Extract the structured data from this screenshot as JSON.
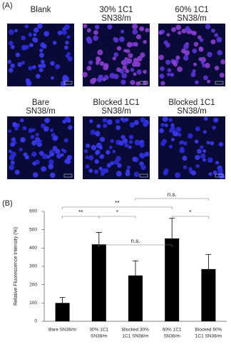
{
  "panel_a": {
    "label": "(A)",
    "images": [
      {
        "caption": [
          "Blank"
        ],
        "stain": "blue"
      },
      {
        "caption": [
          "30% 1C1",
          "SN38/m"
        ],
        "stain": "purple"
      },
      {
        "caption": [
          "60% 1C1",
          "SN38/m"
        ],
        "stain": "purple"
      },
      {
        "caption": [
          "Bare",
          "SN38/m"
        ],
        "stain": "blue"
      },
      {
        "caption": [
          "Blocked 1C1",
          "SN38/m"
        ],
        "stain": "blue"
      },
      {
        "caption": [
          "Blocked 1C1",
          "SN38/m"
        ],
        "stain": "blue"
      }
    ]
  },
  "chart_data": {
    "type": "bar",
    "panel_label": "(B)",
    "y_label": "Relative Fluorescence Intensity (%)",
    "categories": [
      [
        "Bare SN38/m"
      ],
      [
        "30% 1C1",
        "SN38/m"
      ],
      [
        "Blocked 30%",
        "1C1 SN38/m"
      ],
      [
        "60% 1C1",
        "SN38/m"
      ],
      [
        "Blocked 60%",
        "1C1 SN38/m"
      ]
    ],
    "values": [
      100,
      420,
      250,
      452,
      285
    ],
    "errors": [
      30,
      65,
      80,
      110,
      80
    ],
    "color": "#000000",
    "ylim": [
      0,
      600
    ],
    "yticks": [
      0,
      100,
      200,
      300,
      400,
      500,
      600
    ],
    "significance": [
      {
        "from": 0,
        "to": 1,
        "label": "**"
      },
      {
        "from": 1,
        "to": 2,
        "label": "*"
      },
      {
        "from": 3,
        "to": 4,
        "label": "*"
      },
      {
        "from": 1,
        "to": 3,
        "label": "n.s."
      },
      {
        "from": 0,
        "to": 3,
        "label": "**"
      },
      {
        "from": 2,
        "to": 4,
        "label": "n.s."
      }
    ]
  }
}
